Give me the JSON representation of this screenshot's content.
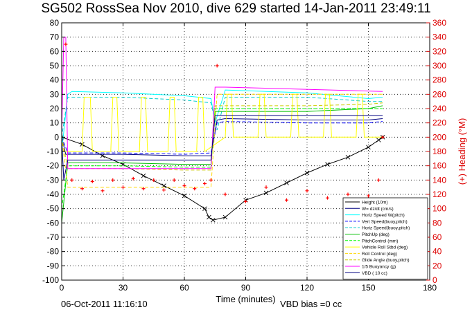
{
  "chart_data": {
    "type": "line",
    "title": "SG502 RossSea Nov 2010, dive 629 started 14-Jan-2011 23:49:11",
    "xlabel": "Time (minutes)",
    "ylabel_right": "(+) Heading (°M)",
    "xlim": [
      0,
      180
    ],
    "ylim": [
      -100,
      80
    ],
    "ylim_right": [
      0,
      360
    ],
    "grid": true,
    "legend_position": "lower-right",
    "x_ticks": [
      "0",
      "30",
      "60",
      "90",
      "120",
      "150",
      "180"
    ],
    "y_ticks": [
      "80",
      "70",
      "60",
      "50",
      "40",
      "30",
      "20",
      "10",
      "0",
      "-10",
      "-20",
      "-30",
      "-40",
      "-50",
      "-60",
      "-70",
      "-80",
      "-90",
      "-100"
    ],
    "y_ticks_right": [
      "360",
      "340",
      "320",
      "300",
      "280",
      "260",
      "240",
      "220",
      "200",
      "180",
      "160",
      "140",
      "120",
      "100",
      "80",
      "60",
      "40",
      "20",
      "0"
    ],
    "series": [
      {
        "name": "Height (10m)",
        "color": "#000000",
        "style": "line+x",
        "x": [
          0,
          10,
          20,
          30,
          40,
          50,
          60,
          70,
          72,
          74,
          80,
          90,
          100,
          110,
          120,
          130,
          140,
          150,
          155,
          157
        ],
        "y": [
          0,
          -5,
          -13,
          -19,
          -27,
          -34,
          -41,
          -50,
          -56,
          -58,
          -56,
          -44,
          -39,
          -32,
          -25,
          -19,
          -14,
          -7,
          -2,
          0
        ]
      },
      {
        "name": "W= dz/dt (cm/s)",
        "color": "#000080",
        "style": "line",
        "x": [
          0,
          2,
          5,
          30,
          60,
          73,
          76,
          80,
          120,
          150,
          157
        ],
        "y": [
          0,
          -12,
          -12,
          -12,
          -13,
          -13,
          12,
          13,
          12,
          12,
          13
        ]
      },
      {
        "name": "Horiz Speed W(pitch)",
        "color": "#00ffff",
        "style": "line",
        "x": [
          0,
          3,
          5,
          30,
          60,
          73,
          75,
          80,
          120,
          150,
          157
        ],
        "y": [
          -10,
          30,
          32,
          31,
          29,
          27,
          10,
          33,
          31,
          27,
          28
        ]
      },
      {
        "name": "Vert Speed(buoy,pitch)",
        "color": "#0000ff",
        "style": "dash",
        "x": [
          0,
          3,
          30,
          60,
          73,
          76,
          80,
          120,
          150,
          157
        ],
        "y": [
          0,
          -11,
          -11,
          -12,
          -11,
          10,
          11,
          10,
          10,
          11
        ]
      },
      {
        "name": "Horiz Speed(buoy,pitch)",
        "color": "#00cccc",
        "style": "dash",
        "x": [
          0,
          3,
          30,
          60,
          73,
          76,
          80,
          120,
          150,
          157
        ],
        "y": [
          0,
          28,
          28,
          26,
          24,
          5,
          28,
          28,
          25,
          25
        ]
      },
      {
        "name": "PitchUp (deg)",
        "color": "#00c000",
        "style": "line",
        "x": [
          0,
          3,
          30,
          60,
          73,
          75,
          80,
          120,
          150,
          157
        ],
        "y": [
          -60,
          -18,
          -18,
          -19,
          -19,
          18,
          18,
          18,
          20,
          22
        ]
      },
      {
        "name": "PitchControl (mm)",
        "color": "#00ff00",
        "style": "dash",
        "x": [
          0,
          3,
          30,
          60,
          73,
          75,
          80,
          120,
          150,
          157
        ],
        "y": [
          -50,
          -20,
          -20,
          -21,
          -21,
          20,
          20,
          20,
          20,
          20
        ]
      },
      {
        "name": "Vehicle Roll Stbd (deg)",
        "color": "#ffff00",
        "style": "line",
        "x": [
          0,
          10,
          11,
          14,
          15,
          24,
          25,
          27,
          28,
          38,
          39,
          41,
          42,
          52,
          53,
          55,
          56,
          66,
          67,
          69,
          70,
          80,
          81,
          83,
          84,
          96,
          97,
          99,
          100,
          112,
          113,
          115,
          116,
          128,
          129,
          131,
          132,
          144,
          145,
          147,
          148,
          157
        ],
        "y": [
          -10,
          -10,
          28,
          28,
          -10,
          -10,
          28,
          28,
          -10,
          -10,
          28,
          28,
          -10,
          -10,
          28,
          28,
          -10,
          -10,
          28,
          28,
          -10,
          0,
          30,
          30,
          0,
          0,
          30,
          30,
          0,
          0,
          30,
          30,
          0,
          0,
          30,
          30,
          0,
          0,
          30,
          30,
          0,
          0
        ]
      },
      {
        "name": "Roll Control (deg)",
        "color": "#ffd700",
        "style": "dash",
        "x": [
          0,
          3,
          73,
          76,
          157
        ],
        "y": [
          0,
          -35,
          -35,
          30,
          30
        ]
      },
      {
        "name": "Glide Angle (buoy,pitch)",
        "color": "#cccc00",
        "style": "dash",
        "x": [
          0,
          3,
          30,
          60,
          73,
          75,
          80,
          120,
          150,
          157
        ],
        "y": [
          0,
          -22,
          -22,
          -23,
          -23,
          22,
          22,
          22,
          23,
          24
        ]
      },
      {
        "name": "1/5 Buoyancy (g)",
        "color": "#ff00ff",
        "style": "line",
        "x": [
          0,
          1,
          2,
          3,
          73,
          75,
          80,
          157
        ],
        "y": [
          0,
          70,
          70,
          -22,
          -22,
          35,
          35,
          32
        ]
      },
      {
        "name": "VBD ( 10 cc)",
        "color": "#000080",
        "style": "line",
        "x": [
          0,
          1,
          3,
          73,
          75,
          80,
          157
        ],
        "y": [
          0,
          -30,
          -16,
          -16,
          15,
          15,
          15
        ]
      },
      {
        "name": "Heading",
        "axis": "right",
        "color": "#ff0000",
        "style": "markers-plus",
        "x": [
          2,
          5,
          10,
          15,
          20,
          25,
          30,
          35,
          40,
          45,
          50,
          55,
          60,
          65,
          70,
          73,
          76,
          80,
          90,
          100,
          110,
          120,
          130,
          140,
          150,
          155,
          157
        ],
        "y": [
          330,
          140,
          128,
          138,
          125,
          140,
          130,
          142,
          128,
          140,
          126,
          140,
          132,
          128,
          135,
          140,
          300,
          120,
          110,
          130,
          112,
          125,
          115,
          120,
          118,
          140,
          200
        ]
      }
    ]
  },
  "footer": {
    "datetime": "06-Oct-2011 11:16:10",
    "vbd_bias": "VBD bias =0 cc"
  }
}
